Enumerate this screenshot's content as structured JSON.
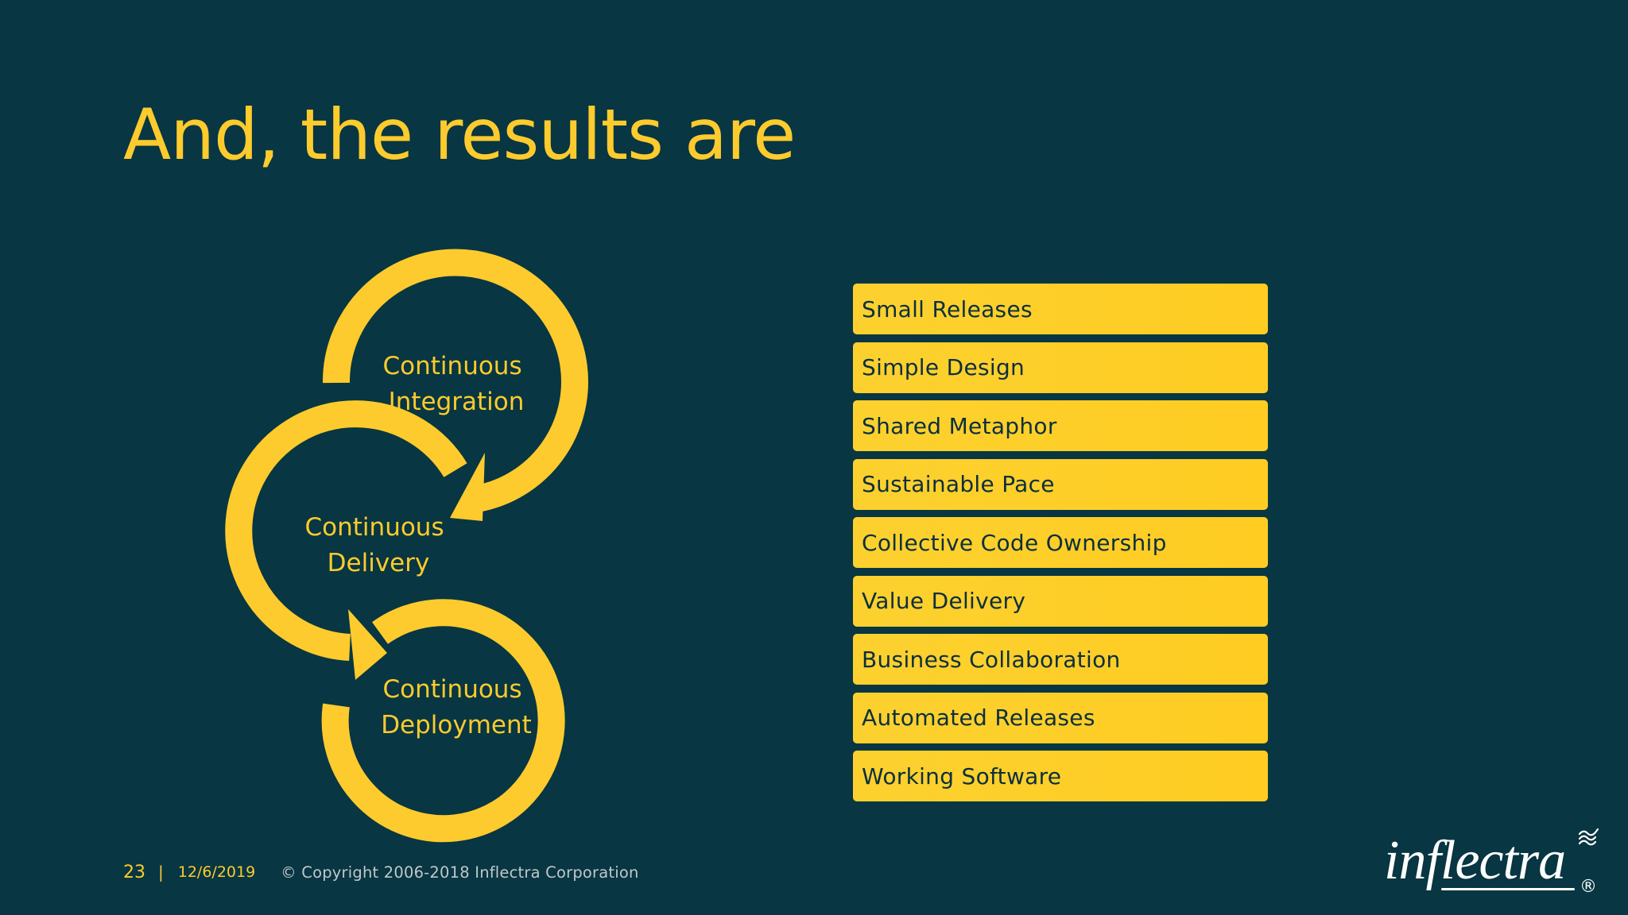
{
  "slide": {
    "title": "And, the results are"
  },
  "cycle": {
    "integration_lines": [
      "Continuous",
      "Integration"
    ],
    "delivery_lines": [
      "Continuous",
      "Delivery"
    ],
    "deployment_lines": [
      "Continuous",
      "Deployment"
    ]
  },
  "practices": [
    "Small Releases",
    "Simple Design",
    "Shared Metaphor",
    "Sustainable Pace",
    "Collective Code Ownership",
    "Value Delivery",
    "Business Collaboration",
    "Automated Releases",
    "Working Software"
  ],
  "footer": {
    "page_number": "23",
    "separator": "|",
    "date": "12/6/2019",
    "copyright": "© Copyright 2006-2018 Inflectra Corporation"
  },
  "logo": {
    "text": "inflectra",
    "registered": "®",
    "icon": "waves-icon"
  },
  "colors": {
    "background": "#083642",
    "accent": "#FDCB2D",
    "item_text": "#0C2F3D",
    "footer_text": "#BFC8CB"
  }
}
